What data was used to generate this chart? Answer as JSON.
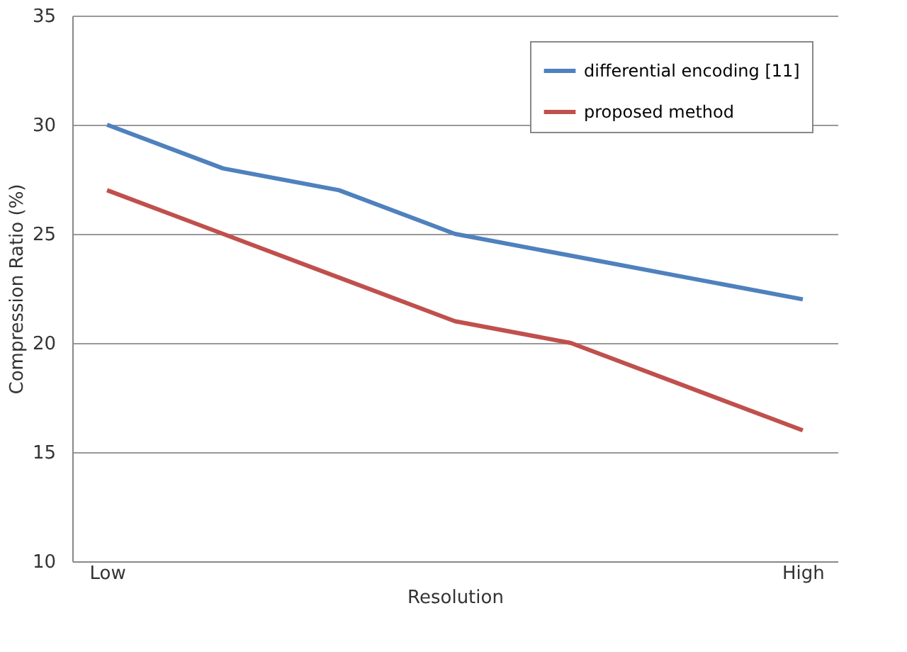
{
  "chart_data": {
    "type": "line",
    "xlabel": "Resolution",
    "ylabel": "Compression  Ratio  (%)",
    "categories": [
      "Low",
      null,
      null,
      null,
      null,
      null,
      "High"
    ],
    "series": [
      {
        "name": "differential encoding [11]",
        "color": "#4f81bd",
        "values": [
          30,
          28,
          27,
          25,
          24,
          23,
          22
        ]
      },
      {
        "name": "proposed method",
        "color": "#c0504d",
        "values": [
          27,
          25,
          23,
          21,
          20,
          18,
          16
        ]
      }
    ],
    "ylim": [
      10,
      35
    ],
    "yticks": [
      10,
      15,
      20,
      25,
      30,
      35
    ],
    "grid": "y",
    "legend": "top right",
    "marker": "none",
    "line_style": "solid"
  }
}
